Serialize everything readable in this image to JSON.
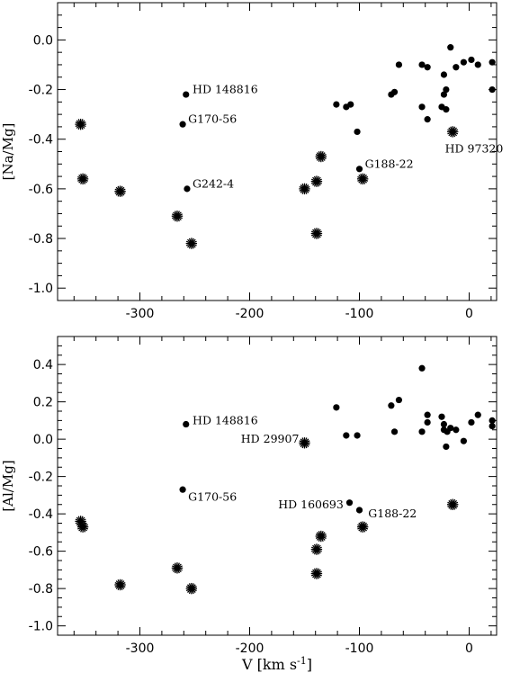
{
  "chart_data": [
    {
      "type": "scatter",
      "ylabel": "[Na/Mg]",
      "xlabel": "",
      "xlim": [
        -375,
        25
      ],
      "ylim": [
        -1.05,
        0.15
      ],
      "xticks": [
        -300,
        -200,
        -100,
        0
      ],
      "xtick_labels": [
        "-300",
        "-200",
        "-100",
        "0"
      ],
      "yticks": [
        0.0,
        -0.2,
        -0.4,
        -0.6,
        -0.8,
        -1.0
      ],
      "ytick_labels": [
        "0.0",
        "-0.2",
        "-0.4",
        "-0.6",
        "-0.8",
        "-1.0"
      ],
      "series": [
        {
          "marker": "dot",
          "points": [
            {
              "x": -258,
              "y": -0.22
            },
            {
              "x": -261,
              "y": -0.34
            },
            {
              "x": -257,
              "y": -0.6
            },
            {
              "x": -100,
              "y": -0.52
            },
            {
              "x": -121,
              "y": -0.26
            },
            {
              "x": -112,
              "y": -0.27
            },
            {
              "x": -108,
              "y": -0.26
            },
            {
              "x": -102,
              "y": -0.37
            },
            {
              "x": -71,
              "y": -0.22
            },
            {
              "x": -68,
              "y": -0.21
            },
            {
              "x": -64,
              "y": -0.1
            },
            {
              "x": -43,
              "y": -0.1
            },
            {
              "x": -38,
              "y": -0.11
            },
            {
              "x": -43,
              "y": -0.27
            },
            {
              "x": -38,
              "y": -0.32
            },
            {
              "x": -25,
              "y": -0.27
            },
            {
              "x": -23,
              "y": -0.14
            },
            {
              "x": -23,
              "y": -0.22
            },
            {
              "x": -21,
              "y": -0.2
            },
            {
              "x": -21,
              "y": -0.28
            },
            {
              "x": -17,
              "y": -0.03
            },
            {
              "x": -12,
              "y": -0.11
            },
            {
              "x": -5,
              "y": -0.09
            },
            {
              "x": 2,
              "y": -0.08
            },
            {
              "x": 8,
              "y": -0.1
            },
            {
              "x": 21,
              "y": -0.09
            },
            {
              "x": 21,
              "y": -0.2
            }
          ]
        },
        {
          "marker": "star",
          "points": [
            {
              "x": -354,
              "y": -0.34
            },
            {
              "x": -352,
              "y": -0.56
            },
            {
              "x": -318,
              "y": -0.61
            },
            {
              "x": -266,
              "y": -0.71
            },
            {
              "x": -253,
              "y": -0.82
            },
            {
              "x": -150,
              "y": -0.6
            },
            {
              "x": -139,
              "y": -0.57
            },
            {
              "x": -139,
              "y": -0.78
            },
            {
              "x": -135,
              "y": -0.47
            },
            {
              "x": -97,
              "y": -0.56
            },
            {
              "x": -15,
              "y": -0.37
            }
          ]
        }
      ],
      "annotations": [
        {
          "text": "HD 148816",
          "x": -252,
          "y": -0.2
        },
        {
          "text": "G170-56",
          "x": -256,
          "y": -0.32
        },
        {
          "text": "G242-4",
          "x": -252,
          "y": -0.58
        },
        {
          "text": "G188-22",
          "x": -95,
          "y": -0.5
        },
        {
          "text": "HD 97320",
          "x": -22,
          "y": -0.44
        }
      ]
    },
    {
      "type": "scatter",
      "ylabel": "[Al/Mg]",
      "xlabel": "V  [km s-1]",
      "xlim": [
        -375,
        25
      ],
      "ylim": [
        -1.05,
        0.55
      ],
      "xticks": [
        -300,
        -200,
        -100,
        0
      ],
      "xtick_labels": [
        "-300",
        "-200",
        "-100",
        "0"
      ],
      "yticks": [
        0.4,
        0.2,
        0.0,
        -0.2,
        -0.4,
        -0.6,
        -0.8,
        -1.0
      ],
      "ytick_labels": [
        "0.4",
        "0.2",
        "0.0",
        "-0.2",
        "-0.4",
        "-0.6",
        "-0.8",
        "-1.0"
      ],
      "series": [
        {
          "marker": "dot",
          "points": [
            {
              "x": -258,
              "y": 0.08
            },
            {
              "x": -261,
              "y": -0.27
            },
            {
              "x": -109,
              "y": -0.34
            },
            {
              "x": -100,
              "y": -0.38
            },
            {
              "x": -121,
              "y": 0.17
            },
            {
              "x": -112,
              "y": 0.02
            },
            {
              "x": -102,
              "y": 0.02
            },
            {
              "x": -71,
              "y": 0.18
            },
            {
              "x": -68,
              "y": 0.04
            },
            {
              "x": -64,
              "y": 0.21
            },
            {
              "x": -43,
              "y": 0.38
            },
            {
              "x": -43,
              "y": 0.04
            },
            {
              "x": -38,
              "y": 0.13
            },
            {
              "x": -38,
              "y": 0.09
            },
            {
              "x": -25,
              "y": 0.12
            },
            {
              "x": -23,
              "y": 0.08
            },
            {
              "x": -23,
              "y": 0.05
            },
            {
              "x": -21,
              "y": -0.04
            },
            {
              "x": -20,
              "y": 0.04
            },
            {
              "x": -17,
              "y": 0.06
            },
            {
              "x": -12,
              "y": 0.05
            },
            {
              "x": -5,
              "y": -0.01
            },
            {
              "x": 2,
              "y": 0.09
            },
            {
              "x": 8,
              "y": 0.13
            },
            {
              "x": 21,
              "y": 0.1
            },
            {
              "x": 21,
              "y": 0.07
            }
          ]
        },
        {
          "marker": "star",
          "points": [
            {
              "x": -354,
              "y": -0.44
            },
            {
              "x": -352,
              "y": -0.47
            },
            {
              "x": -318,
              "y": -0.78
            },
            {
              "x": -266,
              "y": -0.69
            },
            {
              "x": -253,
              "y": -0.8
            },
            {
              "x": -150,
              "y": -0.02
            },
            {
              "x": -139,
              "y": -0.59
            },
            {
              "x": -139,
              "y": -0.72
            },
            {
              "x": -135,
              "y": -0.52
            },
            {
              "x": -97,
              "y": -0.47
            },
            {
              "x": -15,
              "y": -0.35
            }
          ]
        }
      ],
      "annotations": [
        {
          "text": "HD 148816",
          "x": -252,
          "y": 0.1
        },
        {
          "text": "HD 29907",
          "x": -208,
          "y": 0.0
        },
        {
          "text": "G170-56",
          "x": -256,
          "y": -0.31
        },
        {
          "text": "HD 160693",
          "x": -174,
          "y": -0.35
        },
        {
          "text": "G188-22",
          "x": -92,
          "y": -0.4
        }
      ]
    }
  ]
}
